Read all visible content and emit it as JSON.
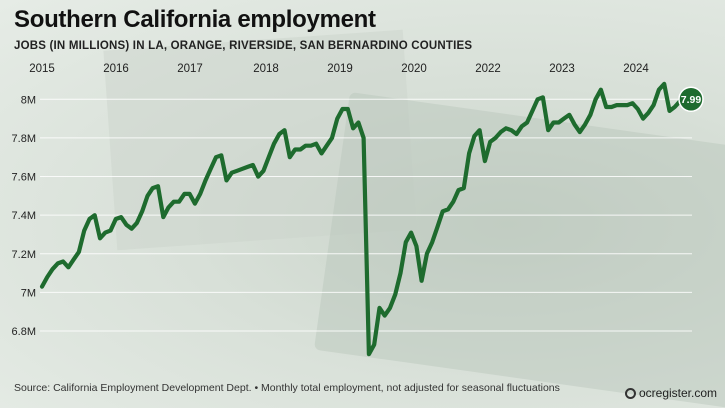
{
  "header": {
    "title": "Southern California employment",
    "subtitle": "JOBS (IN MILLIONS) IN LA, ORANGE, RIVERSIDE, SAN BERNARDINO COUNTIES"
  },
  "footer": {
    "source": "Source: California Employment Development Dept. • Monthly total employment, not adjusted for seasonal fluctuations",
    "brand": "ocregister.com",
    "brand_icon": "ring-logo-icon"
  },
  "colors": {
    "line": "#1e6b2e",
    "label_bg": "#1e6b2e",
    "grid": "#ffffff"
  },
  "chart_data": {
    "type": "line",
    "title": "Southern California employment",
    "subtitle": "JOBS (IN MILLIONS) IN LA, ORANGE, RIVERSIDE, SAN BERNARDINO COUNTIES",
    "xlabel": "",
    "ylabel": "",
    "x_ticks": [
      "2015",
      "2016",
      "2017",
      "2018",
      "2019",
      "2020",
      "2022",
      "2023",
      "2024"
    ],
    "y_ticks": [
      {
        "value": 6.8,
        "label": "6.8M"
      },
      {
        "value": 7.0,
        "label": "7M"
      },
      {
        "value": 7.2,
        "label": "7.2M"
      },
      {
        "value": 7.4,
        "label": "7.4M"
      },
      {
        "value": 7.6,
        "label": "7.6M"
      },
      {
        "value": 7.8,
        "label": "7.8M"
      },
      {
        "value": 8.0,
        "label": "8M"
      }
    ],
    "ylim": [
      6.65,
      8.1
    ],
    "grid": true,
    "end_label": "7.99",
    "series": [
      {
        "values": [
          7.03,
          7.08,
          7.12,
          7.15,
          7.16,
          7.13,
          7.17,
          7.21,
          7.32,
          7.38,
          7.4,
          7.28,
          7.31,
          7.32,
          7.38,
          7.39,
          7.35,
          7.33,
          7.36,
          7.42,
          7.5,
          7.54,
          7.55,
          7.39,
          7.44,
          7.47,
          7.47,
          7.51,
          7.51,
          7.46,
          7.51,
          7.58,
          7.64,
          7.7,
          7.71,
          7.58,
          7.62,
          7.63,
          7.64,
          7.65,
          7.66,
          7.6,
          7.63,
          7.7,
          7.77,
          7.82,
          7.84,
          7.7,
          7.74,
          7.74,
          7.76,
          7.76,
          7.77,
          7.72,
          7.76,
          7.8,
          7.9,
          7.95,
          7.95,
          7.85,
          7.88,
          7.8,
          6.68,
          6.73,
          6.92,
          6.88,
          6.92,
          6.99,
          7.1,
          7.26,
          7.31,
          7.24,
          7.06,
          7.2,
          7.26,
          7.34,
          7.42,
          7.43,
          7.47,
          7.53,
          7.54,
          7.72,
          7.81,
          7.84,
          7.68,
          7.78,
          7.8,
          7.83,
          7.85,
          7.84,
          7.82,
          7.86,
          7.88,
          7.94,
          8.0,
          8.01,
          7.84,
          7.88,
          7.88,
          7.9,
          7.92,
          7.87,
          7.83,
          7.87,
          7.92,
          8.0,
          8.05,
          7.96,
          7.96,
          7.97,
          7.97,
          7.97,
          7.98,
          7.95,
          7.9,
          7.93,
          7.97,
          8.05,
          8.08,
          7.94,
          7.96,
          7.99
        ]
      }
    ]
  }
}
